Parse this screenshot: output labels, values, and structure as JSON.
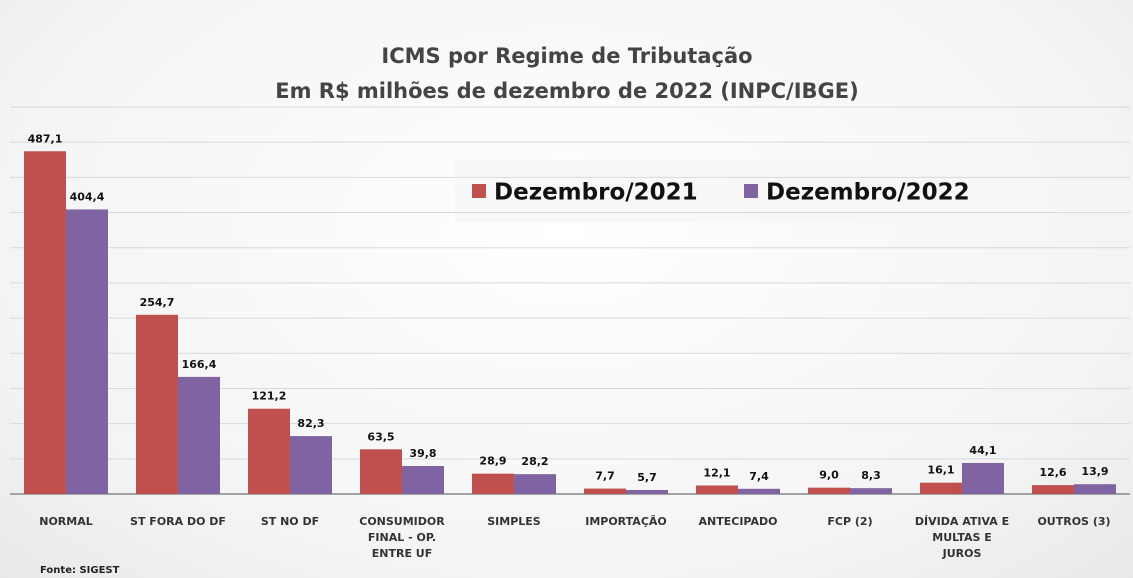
{
  "chart_data": {
    "type": "bar",
    "title": "ICMS por Regime de Tributação",
    "subtitle": "Em R$ milhões de dezembro de 2022 (INPC/IBGE)",
    "source": "Fonte: SIGEST",
    "categories": [
      "NORMAL",
      "ST FORA DO DF",
      "ST NO DF",
      "CONSUMIDOR FINAL - OP. ENTRE UF",
      "SIMPLES",
      "IMPORTAÇÃO",
      "ANTECIPADO",
      "FCP (2)",
      "DÍVIDA ATIVA E MULTAS E JUROS",
      "OUTROS (3)"
    ],
    "series": [
      {
        "name": "Dezembro/2021",
        "color": "#c0504d",
        "values": [
          487.1,
          254.7,
          121.2,
          63.5,
          28.9,
          7.7,
          12.1,
          9.0,
          16.1,
          12.6
        ],
        "value_labels": [
          "487,1",
          "254,7",
          "121,2",
          "63,5",
          "28,9",
          "7,7",
          "12,1",
          "9,0",
          "16,1",
          "12,6"
        ]
      },
      {
        "name": "Dezembro/2022",
        "color": "#8064a2",
        "values": [
          404.4,
          166.4,
          82.3,
          39.8,
          28.2,
          5.7,
          7.4,
          8.3,
          44.1,
          13.9
        ],
        "value_labels": [
          "404,4",
          "166,4",
          "82,3",
          "39,8",
          "28,2",
          "5,7",
          "7,4",
          "8,3",
          "44,1",
          "13,9"
        ]
      }
    ],
    "ylim": [
      0,
      550
    ],
    "yticks": [
      0,
      50,
      100,
      150,
      200,
      250,
      300,
      350,
      400,
      450,
      500,
      550
    ],
    "grid": true
  }
}
